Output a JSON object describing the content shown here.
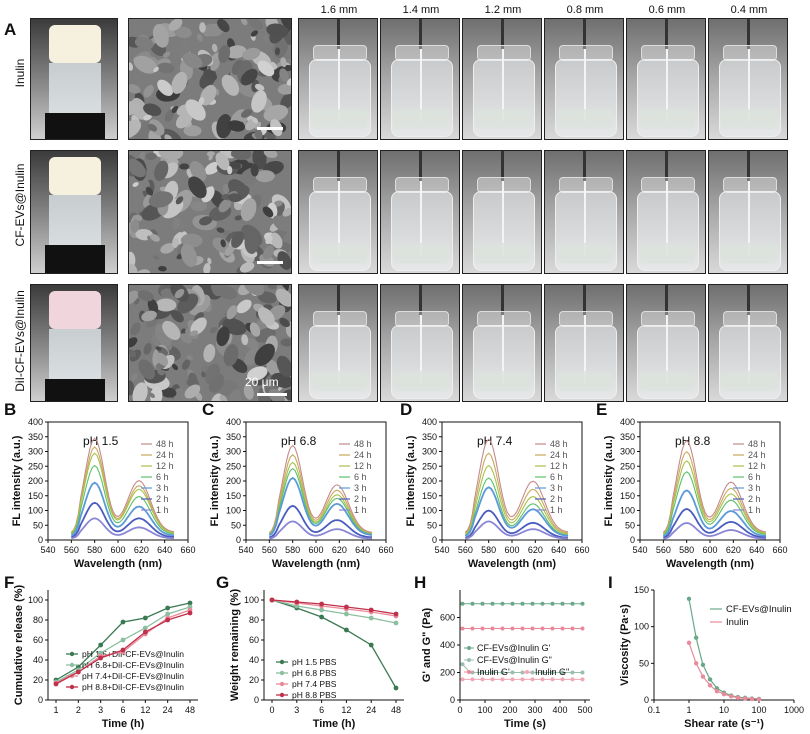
{
  "panels": {
    "A": "A",
    "B": "B",
    "C": "C",
    "D": "D",
    "E": "E",
    "F": "F",
    "G": "G",
    "H": "H",
    "I": "I"
  },
  "panel_A": {
    "rows": [
      "Inulin",
      "CF-EVs@Inulin",
      "DiI-CF-EVs@Inulin"
    ],
    "columns": [
      "1.6 mm",
      "1.4 mm",
      "1.2 mm",
      "0.8 mm",
      "0.6 mm",
      "0.4 mm"
    ],
    "scale_bar_label": "20 μm"
  },
  "chart_data": [
    {
      "panel": "B",
      "type": "line",
      "annotation": "pH 1.5",
      "xlabel": "Wavelength (nm)",
      "ylabel": "FL intensity (a.u.)",
      "xlim": [
        540,
        660
      ],
      "ylim": [
        0,
        400
      ],
      "xticks": [
        540,
        560,
        580,
        600,
        620,
        640,
        660
      ],
      "yticks": [
        0,
        50,
        100,
        150,
        200,
        250,
        300,
        350,
        400
      ],
      "series": [
        {
          "name": "48 h",
          "color": "#c48a8a",
          "peak": 328
        },
        {
          "name": "24 h",
          "color": "#c9a85a",
          "peak": 300
        },
        {
          "name": "12 h",
          "color": "#a8c24a",
          "peak": 280
        },
        {
          "name": "6 h",
          "color": "#5cc06a",
          "peak": 240
        },
        {
          "name": "3 h",
          "color": "#5b9ad8",
          "peak": 185
        },
        {
          "name": "2 h",
          "color": "#4a5dbf",
          "peak": 120
        },
        {
          "name": "1 h",
          "color": "#8a86d6",
          "peak": 70
        }
      ]
    },
    {
      "panel": "C",
      "type": "line",
      "annotation": "pH 6.8",
      "xlabel": "Wavelength (nm)",
      "ylabel": "FL intensity (a.u.)",
      "xlim": [
        540,
        660
      ],
      "ylim": [
        0,
        400
      ],
      "xticks": [
        540,
        560,
        580,
        600,
        620,
        640,
        660
      ],
      "yticks": [
        0,
        50,
        100,
        150,
        200,
        250,
        300,
        350,
        400
      ],
      "series": [
        {
          "name": "48 h",
          "color": "#c48a8a",
          "peak": 305
        },
        {
          "name": "24 h",
          "color": "#c9a85a",
          "peak": 275
        },
        {
          "name": "12 h",
          "color": "#a8c24a",
          "peak": 250
        },
        {
          "name": "6 h",
          "color": "#5cc06a",
          "peak": 230
        },
        {
          "name": "3 h",
          "color": "#5b9ad8",
          "peak": 200
        },
        {
          "name": "2 h",
          "color": "#4a5dbf",
          "peak": 110
        },
        {
          "name": "1 h",
          "color": "#8a86d6",
          "peak": 60
        }
      ]
    },
    {
      "panel": "D",
      "type": "line",
      "annotation": "pH 7.4",
      "xlabel": "Wavelength (nm)",
      "ylabel": "FL intensity (a.u.)",
      "xlim": [
        540,
        660
      ],
      "ylim": [
        0,
        400
      ],
      "xticks": [
        540,
        560,
        580,
        600,
        620,
        640,
        660
      ],
      "yticks": [
        0,
        50,
        100,
        150,
        200,
        250,
        300,
        350,
        400
      ],
      "series": [
        {
          "name": "48 h",
          "color": "#c48a8a",
          "peak": 325
        },
        {
          "name": "24 h",
          "color": "#c9a85a",
          "peak": 280
        },
        {
          "name": "12 h",
          "color": "#a8c24a",
          "peak": 240
        },
        {
          "name": "6 h",
          "color": "#5cc06a",
          "peak": 200
        },
        {
          "name": "3 h",
          "color": "#5b9ad8",
          "peak": 170
        },
        {
          "name": "2 h",
          "color": "#4a5dbf",
          "peak": 95
        },
        {
          "name": "1 h",
          "color": "#8a86d6",
          "peak": 60
        }
      ]
    },
    {
      "panel": "E",
      "type": "line",
      "annotation": "pH 8.8",
      "xlabel": "Wavelength (nm)",
      "ylabel": "FL intensity (a.u.)",
      "xlim": [
        540,
        660
      ],
      "ylim": [
        0,
        400
      ],
      "xticks": [
        540,
        560,
        580,
        600,
        620,
        640,
        660
      ],
      "yticks": [
        0,
        50,
        100,
        150,
        200,
        250,
        300,
        350,
        400
      ],
      "series": [
        {
          "name": "48 h",
          "color": "#c48a8a",
          "peak": 320
        },
        {
          "name": "24 h",
          "color": "#c9a85a",
          "peak": 285
        },
        {
          "name": "12 h",
          "color": "#a8c24a",
          "peak": 255
        },
        {
          "name": "6 h",
          "color": "#5cc06a",
          "peak": 220
        },
        {
          "name": "3 h",
          "color": "#5b9ad8",
          "peak": 160
        },
        {
          "name": "2 h",
          "color": "#4a5dbf",
          "peak": 100
        },
        {
          "name": "1 h",
          "color": "#8a86d6",
          "peak": 55
        }
      ]
    },
    {
      "panel": "F",
      "type": "line",
      "xlabel": "Time (h)",
      "ylabel": "Cumulative release (%)",
      "ylim": [
        0,
        110
      ],
      "categories": [
        "1",
        "2",
        "3",
        "6",
        "12",
        "24",
        "48"
      ],
      "yticks": [
        0,
        20,
        40,
        60,
        80,
        100
      ],
      "series": [
        {
          "name": "pH 1.5+DiI-CF-EVs@Inulin",
          "color": "#3a7a52",
          "values": [
            20,
            33,
            55,
            78,
            82,
            92,
            97
          ]
        },
        {
          "name": "pH 6.8+DiI-CF-EVs@Inulin",
          "color": "#8cbfa0",
          "values": [
            18,
            30,
            47,
            60,
            72,
            86,
            93
          ]
        },
        {
          "name": "pH 7.4+DiI-CF-EVs@Inulin",
          "color": "#e88a9a",
          "values": [
            17,
            28,
            44,
            48,
            66,
            82,
            90
          ]
        },
        {
          "name": "pH 8.8+DiI-CF-EVs@Inulin",
          "color": "#c0304a",
          "values": [
            16,
            28,
            42,
            50,
            68,
            80,
            87
          ]
        }
      ]
    },
    {
      "panel": "G",
      "type": "line",
      "xlabel": "Time (h)",
      "ylabel": "Weight remaining (%)",
      "ylim": [
        0,
        110
      ],
      "categories": [
        "0",
        "3",
        "6",
        "12",
        "24",
        "48"
      ],
      "yticks": [
        0,
        20,
        40,
        60,
        80,
        100
      ],
      "series": [
        {
          "name": "pH 1.5 PBS",
          "color": "#3a7a52",
          "values": [
            100,
            92,
            83,
            70,
            55,
            12
          ]
        },
        {
          "name": "pH 6.8 PBS",
          "color": "#8cbfa0",
          "values": [
            100,
            94,
            90,
            86,
            82,
            77
          ]
        },
        {
          "name": "pH 7.4 PBS",
          "color": "#e88a9a",
          "values": [
            100,
            97,
            94,
            91,
            88,
            84
          ]
        },
        {
          "name": "pH 8.8 PBS",
          "color": "#c0304a",
          "values": [
            100,
            98,
            96,
            93,
            90,
            86
          ]
        }
      ]
    },
    {
      "panel": "H",
      "type": "line",
      "xlabel": "Time (s)",
      "ylabel": "G' and G\" (Pa)",
      "xlim": [
        0,
        520
      ],
      "ylim": [
        0,
        800
      ],
      "xticks": [
        0,
        100,
        200,
        300,
        400,
        500
      ],
      "yticks": [
        0,
        200,
        400,
        600
      ],
      "series": [
        {
          "name": "CF-EVs@Inulin G'",
          "color": "#6aa88a",
          "y": 700
        },
        {
          "name": "CF-EVs@Inulin G\"",
          "color": "#9bbfae",
          "y": 200
        },
        {
          "name": "Inulin G'",
          "color": "#e88a9a",
          "y": 520
        },
        {
          "name": "Inulin G\"",
          "color": "#f0a8b4",
          "y": 150
        }
      ]
    },
    {
      "panel": "I",
      "type": "line",
      "xlabel": "Shear rate (s⁻¹)",
      "ylabel": "Viscosity (Pa·s)",
      "xscale": "log",
      "xlim": [
        0.1,
        1000
      ],
      "ylim": [
        0,
        150
      ],
      "xticks": [
        "0.1",
        "1",
        "10",
        "100",
        "1000"
      ],
      "yticks": [
        0,
        50,
        100,
        150
      ],
      "series": [
        {
          "name": "CF-EVs@Inulin",
          "color": "#6aa88a",
          "x": [
            1,
            1.6,
            2.5,
            4,
            6.3,
            10,
            16,
            25,
            40,
            63,
            100
          ],
          "values": [
            138,
            85,
            48,
            28,
            16,
            10,
            6,
            4,
            3,
            2,
            1.5
          ]
        },
        {
          "name": "Inulin",
          "color": "#e88a9a",
          "x": [
            1,
            1.6,
            2.5,
            4,
            6.3,
            10,
            16,
            25,
            40,
            63,
            100
          ],
          "values": [
            78,
            50,
            32,
            20,
            12,
            8,
            5,
            3,
            2,
            1.5,
            1
          ]
        }
      ]
    }
  ]
}
